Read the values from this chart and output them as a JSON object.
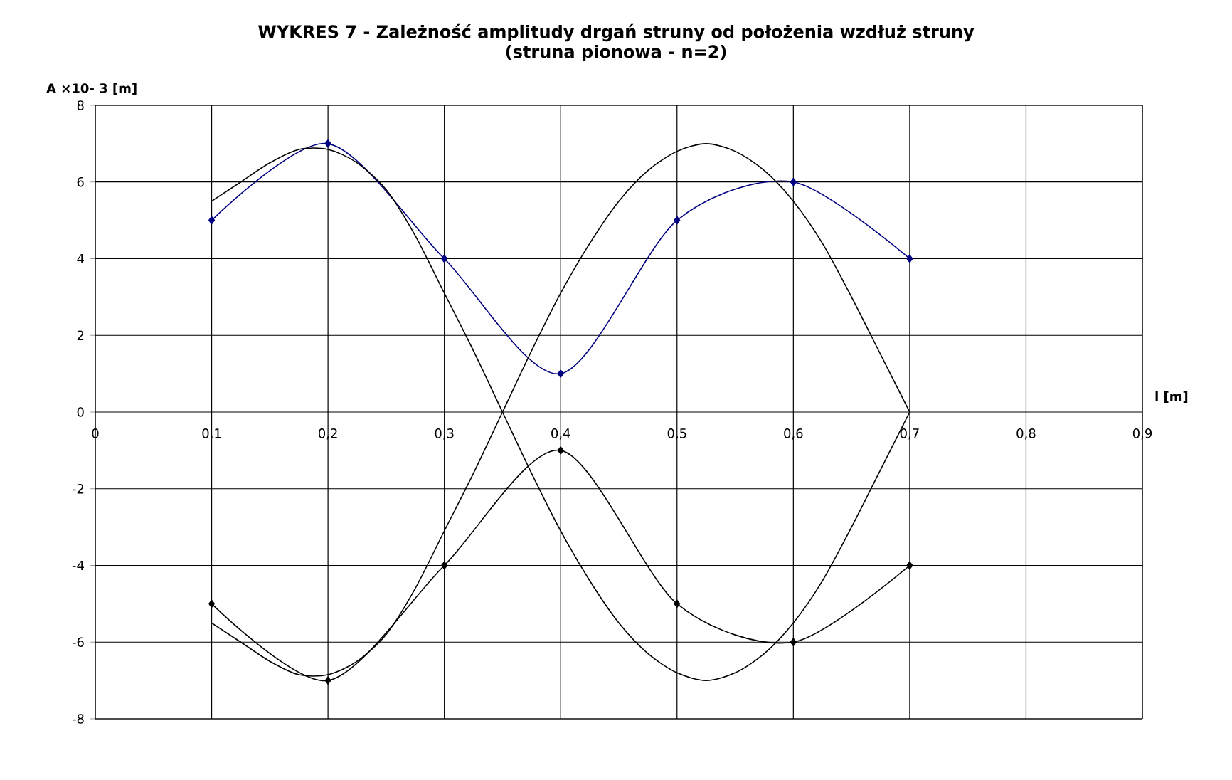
{
  "chart_data": {
    "type": "line",
    "title": "WYKRES 7  -  Zależność amplitudy drgań struny od położenia wzdłuż struny",
    "subtitle": "(struna pionowa  - n=2)",
    "xlabel": "l [m]",
    "ylabel": "A ×10- 3 [m]",
    "x": [
      0.1,
      0.2,
      0.3,
      0.4,
      0.5,
      0.6,
      0.7
    ],
    "series": [
      {
        "color": "#000080",
        "marker": "diamond",
        "values": [
          5,
          7,
          4,
          1,
          5,
          6,
          4
        ]
      },
      {
        "color": "#000000",
        "marker": "diamond",
        "values": [
          -5,
          -7,
          -4,
          -1,
          -5,
          -6,
          -4
        ]
      },
      {
        "color": "#000000",
        "marker": "none",
        "x": [
          0.1,
          0.125,
          0.15,
          0.175,
          0.2,
          0.225,
          0.25,
          0.275,
          0.3,
          0.325,
          0.35,
          0.375,
          0.4,
          0.425,
          0.45,
          0.475,
          0.5,
          0.525,
          0.55,
          0.575,
          0.6,
          0.625,
          0.65,
          0.675,
          0.7
        ],
        "values": [
          5.5,
          6.0,
          6.5,
          6.85,
          6.85,
          6.5,
          5.8,
          4.6,
          3.1,
          1.6,
          0,
          -1.6,
          -3.1,
          -4.4,
          -5.5,
          -6.3,
          -6.8,
          -7.0,
          -6.8,
          -6.3,
          -5.5,
          -4.4,
          -3.0,
          -1.5,
          0
        ]
      },
      {
        "color": "#000000",
        "marker": "none",
        "x": [
          0.1,
          0.125,
          0.15,
          0.175,
          0.2,
          0.225,
          0.25,
          0.275,
          0.3,
          0.325,
          0.35,
          0.375,
          0.4,
          0.425,
          0.45,
          0.475,
          0.5,
          0.525,
          0.55,
          0.575,
          0.6,
          0.625,
          0.65,
          0.675,
          0.7
        ],
        "values": [
          -5.5,
          -6.0,
          -6.5,
          -6.85,
          -6.85,
          -6.5,
          -5.8,
          -4.6,
          -3.1,
          -1.6,
          0,
          1.6,
          3.1,
          4.4,
          5.5,
          6.3,
          6.8,
          7.0,
          6.8,
          6.3,
          5.5,
          4.4,
          3.0,
          1.5,
          0
        ]
      }
    ],
    "xlim": [
      0,
      0.9
    ],
    "xticks": [
      0,
      {
        "value": 0.1,
        "label": "0,1"
      },
      {
        "value": 0.2,
        "label": "0,2"
      },
      {
        "value": 0.3,
        "label": "0,3"
      },
      {
        "value": 0.4,
        "label": "0,4"
      },
      {
        "value": 0.5,
        "label": "0,5"
      },
      {
        "value": 0.6,
        "label": "0,6"
      },
      {
        "value": 0.7,
        "label": "0,7"
      },
      {
        "value": 0.8,
        "label": "0,8"
      },
      {
        "value": 0.9,
        "label": "0,9"
      }
    ],
    "ylim": [
      -8,
      8
    ],
    "yticks": [
      -8,
      -6,
      -4,
      -2,
      0,
      2,
      4,
      6,
      8
    ],
    "grid": true
  }
}
